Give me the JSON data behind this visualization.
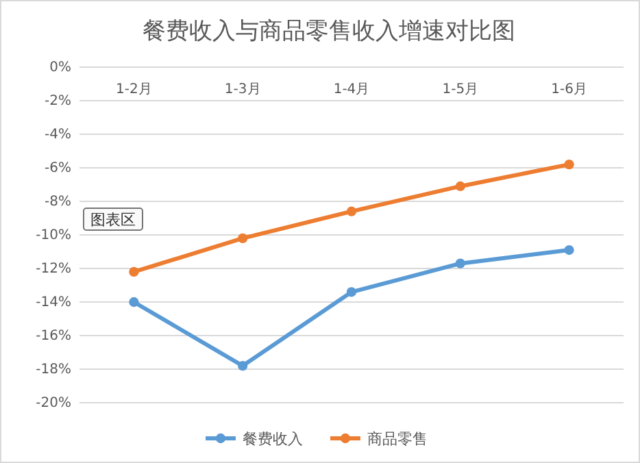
{
  "chart_data": {
    "type": "line",
    "title": "餐费收入与商品零售收入增速对比图",
    "categories": [
      "1-2月",
      "1-3月",
      "1-4月",
      "1-5月",
      "1-6月"
    ],
    "series": [
      {
        "name": "餐费收入",
        "color": "#5b9bd5",
        "values": [
          -14.0,
          -17.8,
          -13.4,
          -11.7,
          -10.9
        ]
      },
      {
        "name": "商品零售",
        "color": "#ed7d31",
        "values": [
          -12.2,
          -10.2,
          -8.6,
          -7.1,
          -5.8
        ]
      }
    ],
    "ylim": [
      -20,
      0
    ],
    "yticks": [
      {
        "value": 0,
        "label": "0%"
      },
      {
        "value": -2,
        "label": "-2%"
      },
      {
        "value": -4,
        "label": "-4%"
      },
      {
        "value": -6,
        "label": "-6%"
      },
      {
        "value": -8,
        "label": "-8%"
      },
      {
        "value": -10,
        "label": "-10%"
      },
      {
        "value": -12,
        "label": "-12%"
      },
      {
        "value": -14,
        "label": "-14%"
      },
      {
        "value": -16,
        "label": "-16%"
      },
      {
        "value": -18,
        "label": "-18%"
      },
      {
        "value": -20,
        "label": "-20%"
      }
    ],
    "grid": "y",
    "legend": "bottom",
    "marker": "circle",
    "line_style": "solid",
    "annotations": [
      "图表区"
    ]
  }
}
